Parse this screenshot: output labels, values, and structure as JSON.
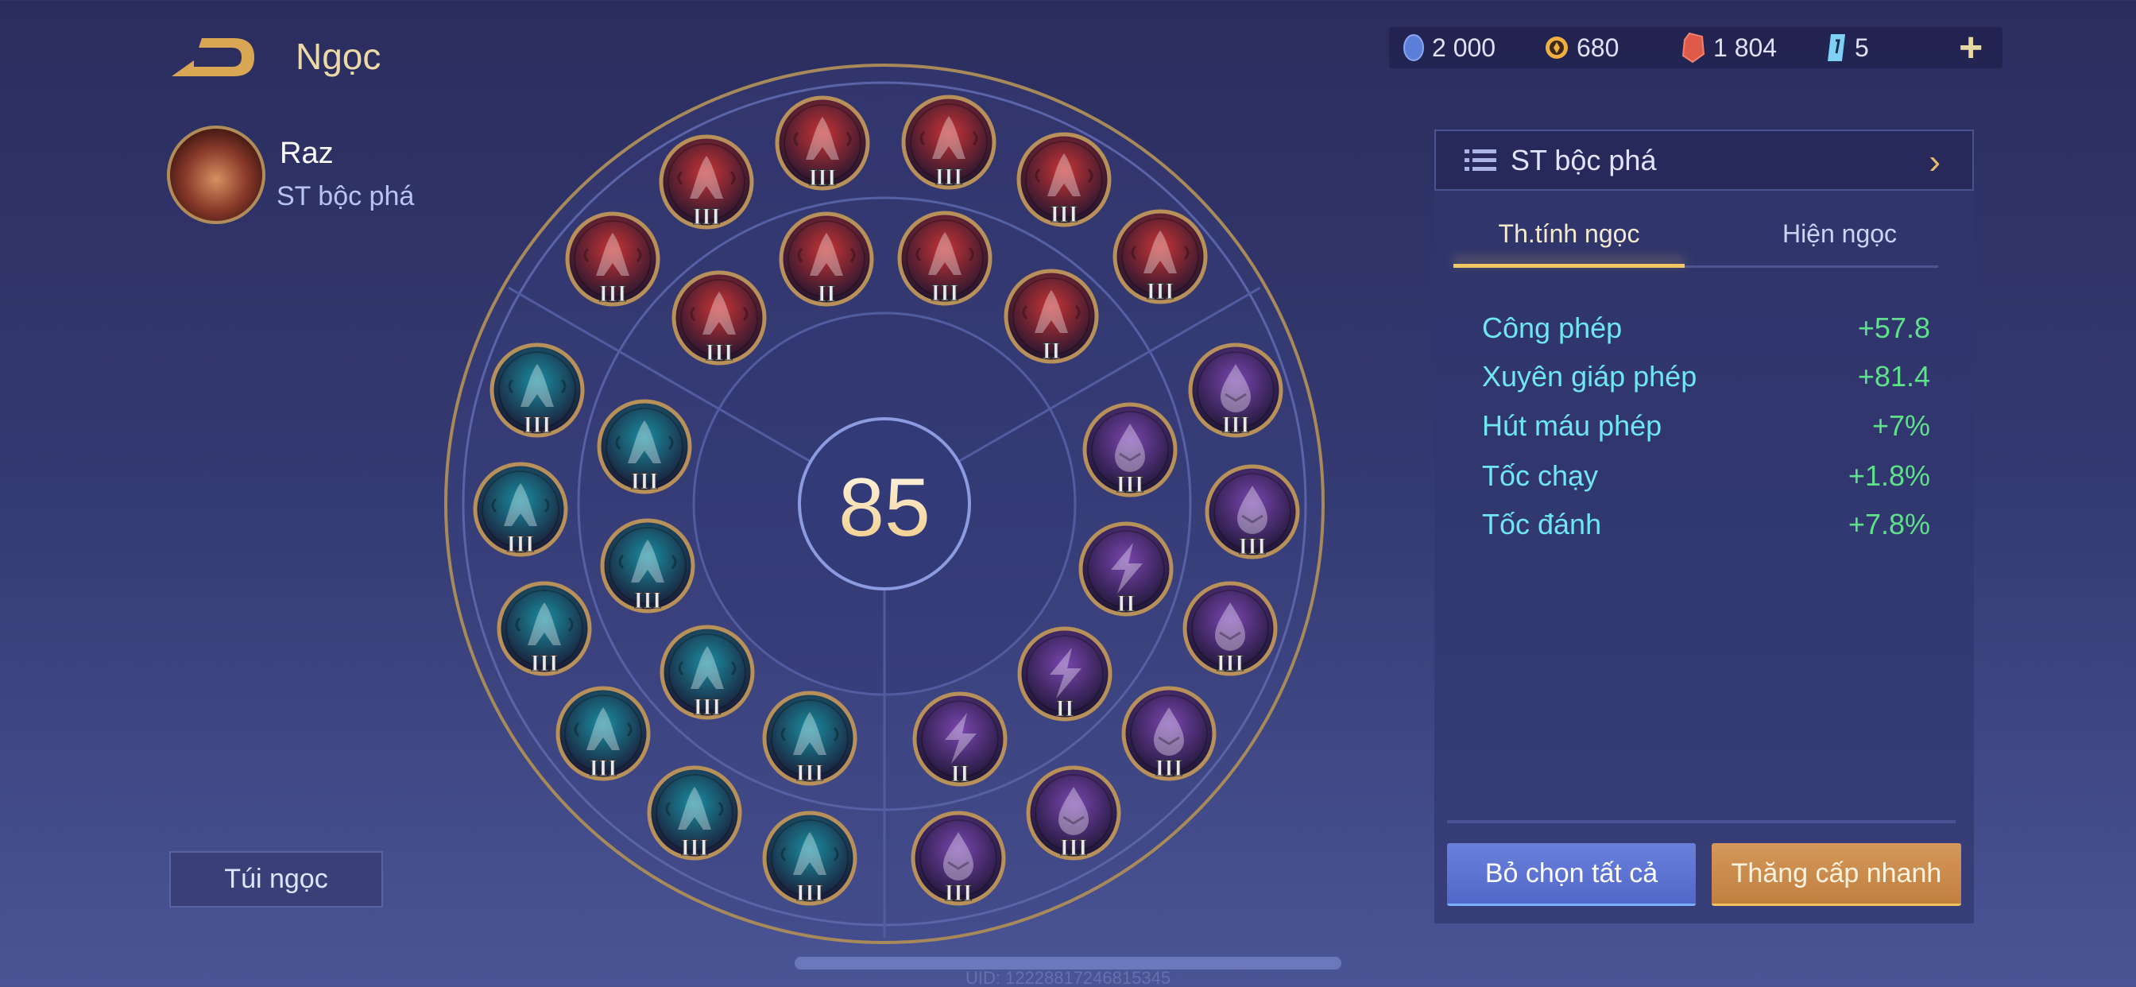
{
  "header": {
    "title": "Ngọc",
    "back_icon": "back-arrow-icon"
  },
  "hero": {
    "name": "Raz",
    "preset": "ST bộc phá"
  },
  "currencies": [
    {
      "icon": "blue-coin-icon",
      "value": "2 000",
      "color": "#5b7fd8"
    },
    {
      "icon": "gold-coin-icon",
      "value": "680",
      "color": "#f0b040"
    },
    {
      "icon": "red-gem-icon",
      "value": "1 804",
      "color": "#e05a4a"
    },
    {
      "icon": "blue-card-icon",
      "value": "5",
      "color": "#7ed0f5"
    }
  ],
  "preset_selector": {
    "label": "ST bộc phá"
  },
  "tabs": [
    {
      "label": "Th.tính ngọc",
      "active": true
    },
    {
      "label": "Hiện ngọc",
      "active": false
    }
  ],
  "stats": [
    {
      "label": "Công phép",
      "value": "+57.8"
    },
    {
      "label": "Xuyên giáp phép",
      "value": "+81.4"
    },
    {
      "label": "Hút máu phép",
      "value": "+7%"
    },
    {
      "label": "Tốc chạy",
      "value": "+1.8%"
    },
    {
      "label": "Tốc đánh",
      "value": "+7.8%"
    }
  ],
  "buttons": {
    "deselect_all": "Bỏ chọn tất cả",
    "quick_upgrade": "Thăng cấp nhanh",
    "gem_bag": "Túi ngọc"
  },
  "board": {
    "level": "85",
    "colors": {
      "red": "#c83434",
      "teal": "#1a8ea0",
      "purple": "#7a46b0"
    },
    "gems": [
      {
        "color": "red",
        "symbol": "arch",
        "level": "III"
      },
      {
        "color": "red",
        "symbol": "arch",
        "level": "III"
      },
      {
        "color": "red",
        "symbol": "arch",
        "level": "III"
      },
      {
        "color": "red",
        "symbol": "arch",
        "level": "III"
      },
      {
        "color": "red",
        "symbol": "arch",
        "level": "III"
      },
      {
        "color": "red",
        "symbol": "arch",
        "level": "II"
      },
      {
        "color": "red",
        "symbol": "arch",
        "level": "III"
      },
      {
        "color": "red",
        "symbol": "arch",
        "level": "III"
      },
      {
        "color": "red",
        "symbol": "arch",
        "level": "III"
      },
      {
        "color": "red",
        "symbol": "arch",
        "level": "II"
      },
      {
        "color": "teal",
        "symbol": "arch",
        "level": "III"
      },
      {
        "color": "teal",
        "symbol": "arch",
        "level": "III"
      },
      {
        "color": "teal",
        "symbol": "arch",
        "level": "III"
      },
      {
        "color": "teal",
        "symbol": "arch",
        "level": "III"
      },
      {
        "color": "teal",
        "symbol": "arch",
        "level": "III"
      },
      {
        "color": "teal",
        "symbol": "arch",
        "level": "III"
      },
      {
        "color": "teal",
        "symbol": "arch",
        "level": "III"
      },
      {
        "color": "teal",
        "symbol": "arch",
        "level": "III"
      },
      {
        "color": "teal",
        "symbol": "arch",
        "level": "III"
      },
      {
        "color": "teal",
        "symbol": "arch",
        "level": "III"
      },
      {
        "color": "purple",
        "symbol": "drop",
        "level": "III"
      },
      {
        "color": "purple",
        "symbol": "drop",
        "level": "III"
      },
      {
        "color": "purple",
        "symbol": "drop",
        "level": "III"
      },
      {
        "color": "purple",
        "symbol": "bolt",
        "level": "II"
      },
      {
        "color": "purple",
        "symbol": "drop",
        "level": "III"
      },
      {
        "color": "purple",
        "symbol": "bolt",
        "level": "II"
      },
      {
        "color": "purple",
        "symbol": "bolt",
        "level": "II"
      },
      {
        "color": "purple",
        "symbol": "drop",
        "level": "III"
      },
      {
        "color": "purple",
        "symbol": "drop",
        "level": "III"
      },
      {
        "color": "purple",
        "symbol": "drop",
        "level": "III"
      }
    ]
  },
  "footer": {
    "uid": "UID: 12228817246815345"
  }
}
